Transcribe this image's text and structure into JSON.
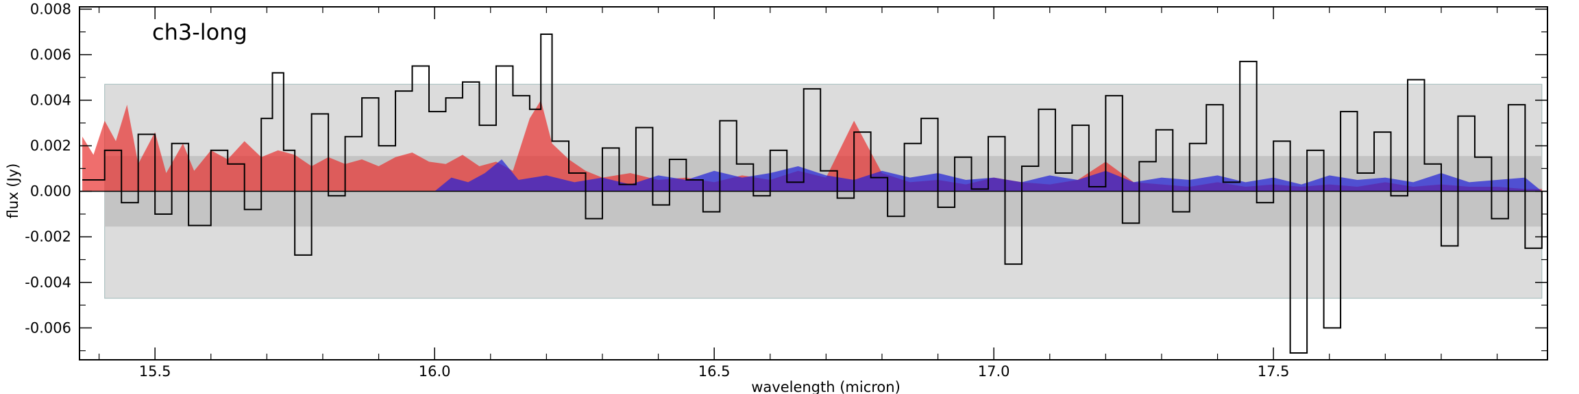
{
  "chart_data": {
    "type": "line",
    "title": "",
    "annotation": "ch3-long",
    "xlabel": "wavelength (micron)",
    "ylabel": "flux (Jy)",
    "xlim": [
      15.365,
      17.99
    ],
    "ylim": [
      -0.0074,
      0.0081
    ],
    "x_ticks": [
      15.5,
      16.0,
      16.5,
      17.0,
      17.5
    ],
    "x_tick_labels": [
      "15.5",
      "16.0",
      "16.5",
      "17.0",
      "17.5"
    ],
    "y_ticks": [
      -0.006,
      -0.004,
      -0.002,
      0.0,
      0.002,
      0.004,
      0.006,
      0.008
    ],
    "y_tick_labels": [
      "-0.006",
      "-0.004",
      "-0.002",
      "0.000",
      "0.002",
      "0.004",
      "0.006",
      "0.008"
    ],
    "grid": false,
    "legend": "none",
    "noise_bands": {
      "x_range": [
        15.41,
        17.98
      ],
      "outer": [
        -0.0047,
        0.0047
      ],
      "inner": [
        -0.00155,
        0.00155
      ],
      "outer_color": "#dcdcdc",
      "inner_color": "#c4c4c4"
    },
    "model_fill_colors": [
      "#e8312f",
      "#2020d8"
    ],
    "series": [
      {
        "color": "#000000",
        "style": "steps",
        "x": [
          15.37,
          15.41,
          15.44,
          15.47,
          15.5,
          15.53,
          15.56,
          15.6,
          15.63,
          15.66,
          15.69,
          15.71,
          15.73,
          15.75,
          15.78,
          15.81,
          15.84,
          15.87,
          15.9,
          15.93,
          15.96,
          15.99,
          16.02,
          16.05,
          16.08,
          16.11,
          16.14,
          16.17,
          16.19,
          16.21,
          16.24,
          16.27,
          16.3,
          16.33,
          16.36,
          16.39,
          16.42,
          16.45,
          16.48,
          16.51,
          16.54,
          16.57,
          16.6,
          16.63,
          16.66,
          16.69,
          16.72,
          16.75,
          16.78,
          16.81,
          16.84,
          16.87,
          16.9,
          16.93,
          16.96,
          16.99,
          17.02,
          17.05,
          17.08,
          17.11,
          17.14,
          17.17,
          17.2,
          17.23,
          17.26,
          17.29,
          17.32,
          17.35,
          17.38,
          17.41,
          17.44,
          17.47,
          17.5,
          17.53,
          17.56,
          17.59,
          17.62,
          17.65,
          17.68,
          17.71,
          17.74,
          17.77,
          17.8,
          17.83,
          17.86,
          17.89,
          17.92,
          17.95,
          17.98
        ],
        "y": [
          0.0005,
          0.0018,
          -0.0005,
          0.0025,
          -0.001,
          0.0021,
          -0.0015,
          0.0018,
          0.0012,
          -0.0008,
          0.0032,
          0.0052,
          0.0018,
          -0.0028,
          0.0034,
          -0.0002,
          0.0024,
          0.0041,
          0.002,
          0.0044,
          0.0055,
          0.0035,
          0.0041,
          0.0048,
          0.0029,
          0.0055,
          0.0042,
          0.0036,
          0.0069,
          0.0022,
          0.0008,
          -0.0012,
          0.0019,
          0.0003,
          0.0028,
          -0.0006,
          0.0014,
          0.0005,
          -0.0009,
          0.0031,
          0.0012,
          -0.0002,
          0.0018,
          0.0004,
          0.0045,
          0.0009,
          -0.0003,
          0.0026,
          0.0006,
          -0.0011,
          0.0021,
          0.0032,
          -0.0007,
          0.0015,
          0.0001,
          0.0024,
          -0.0032,
          0.0011,
          0.0036,
          0.0008,
          0.0029,
          0.0002,
          0.0042,
          -0.0014,
          0.0013,
          0.0027,
          -0.0009,
          0.0021,
          0.0038,
          0.0004,
          0.0057,
          -0.0005,
          0.0022,
          -0.0071,
          0.0018,
          -0.006,
          0.0035,
          0.0008,
          0.0026,
          -0.0002,
          0.0049,
          0.0012,
          -0.0024,
          0.0033,
          0.0015,
          -0.0012,
          0.0038,
          -0.0025,
          0.0
        ]
      },
      {
        "color": "#e8312f",
        "style": "filled",
        "x": [
          15.37,
          15.39,
          15.41,
          15.43,
          15.45,
          15.47,
          15.5,
          15.52,
          15.55,
          15.57,
          15.6,
          15.63,
          15.66,
          15.69,
          15.72,
          15.75,
          15.78,
          15.81,
          15.84,
          15.87,
          15.9,
          15.93,
          15.96,
          15.99,
          16.02,
          16.05,
          16.08,
          16.11,
          16.14,
          16.17,
          16.19,
          16.21,
          16.24,
          16.27,
          16.3,
          16.35,
          16.4,
          16.45,
          16.5,
          16.55,
          16.6,
          16.65,
          16.7,
          16.75,
          16.8,
          16.85,
          16.9,
          16.95,
          17.0,
          17.05,
          17.1,
          17.15,
          17.2,
          17.25,
          17.3,
          17.35,
          17.4,
          17.45,
          17.5,
          17.55,
          17.6,
          17.65,
          17.7,
          17.75,
          17.8,
          17.85,
          17.9,
          17.95,
          17.98
        ],
        "y": [
          0.0024,
          0.0016,
          0.0031,
          0.0022,
          0.0038,
          0.0012,
          0.0026,
          0.0008,
          0.0021,
          0.0009,
          0.0018,
          0.0014,
          0.0022,
          0.0015,
          0.0018,
          0.0016,
          0.0011,
          0.0015,
          0.0012,
          0.0014,
          0.0011,
          0.0015,
          0.0017,
          0.0013,
          0.0012,
          0.0016,
          0.0011,
          0.0013,
          0.0009,
          0.0032,
          0.004,
          0.0021,
          0.0014,
          0.0009,
          0.0006,
          0.0008,
          0.0005,
          0.0006,
          0.0004,
          0.0007,
          0.0005,
          0.0009,
          0.0006,
          0.0031,
          0.0008,
          0.0004,
          0.0005,
          0.0003,
          0.0006,
          0.0004,
          0.0003,
          0.0005,
          0.0013,
          0.0004,
          0.0003,
          0.0002,
          0.0004,
          0.0002,
          0.0003,
          0.0002,
          0.0003,
          0.0002,
          0.0004,
          0.0002,
          0.0003,
          0.0002,
          0.0002,
          0.0001,
          0.0001
        ]
      },
      {
        "color": "#2020d8",
        "style": "filled",
        "x": [
          16.0,
          16.03,
          16.06,
          16.09,
          16.12,
          16.15,
          16.2,
          16.25,
          16.3,
          16.35,
          16.4,
          16.45,
          16.5,
          16.55,
          16.6,
          16.65,
          16.7,
          16.75,
          16.8,
          16.85,
          16.9,
          16.95,
          17.0,
          17.05,
          17.1,
          17.15,
          17.2,
          17.25,
          17.3,
          17.35,
          17.4,
          17.45,
          17.5,
          17.55,
          17.6,
          17.65,
          17.7,
          17.75,
          17.8,
          17.85,
          17.9,
          17.95,
          17.98
        ],
        "y": [
          0.0,
          0.0006,
          0.0004,
          0.0008,
          0.0014,
          0.0005,
          0.0007,
          0.0004,
          0.0006,
          0.0003,
          0.0007,
          0.0005,
          0.0009,
          0.0006,
          0.0008,
          0.0011,
          0.0007,
          0.0005,
          0.0009,
          0.0006,
          0.0008,
          0.0005,
          0.0006,
          0.0004,
          0.0007,
          0.0005,
          0.0009,
          0.0004,
          0.0006,
          0.0005,
          0.0007,
          0.0004,
          0.0006,
          0.0003,
          0.0007,
          0.0005,
          0.0006,
          0.0004,
          0.0008,
          0.0004,
          0.0005,
          0.0006,
          0.0
        ]
      }
    ]
  }
}
